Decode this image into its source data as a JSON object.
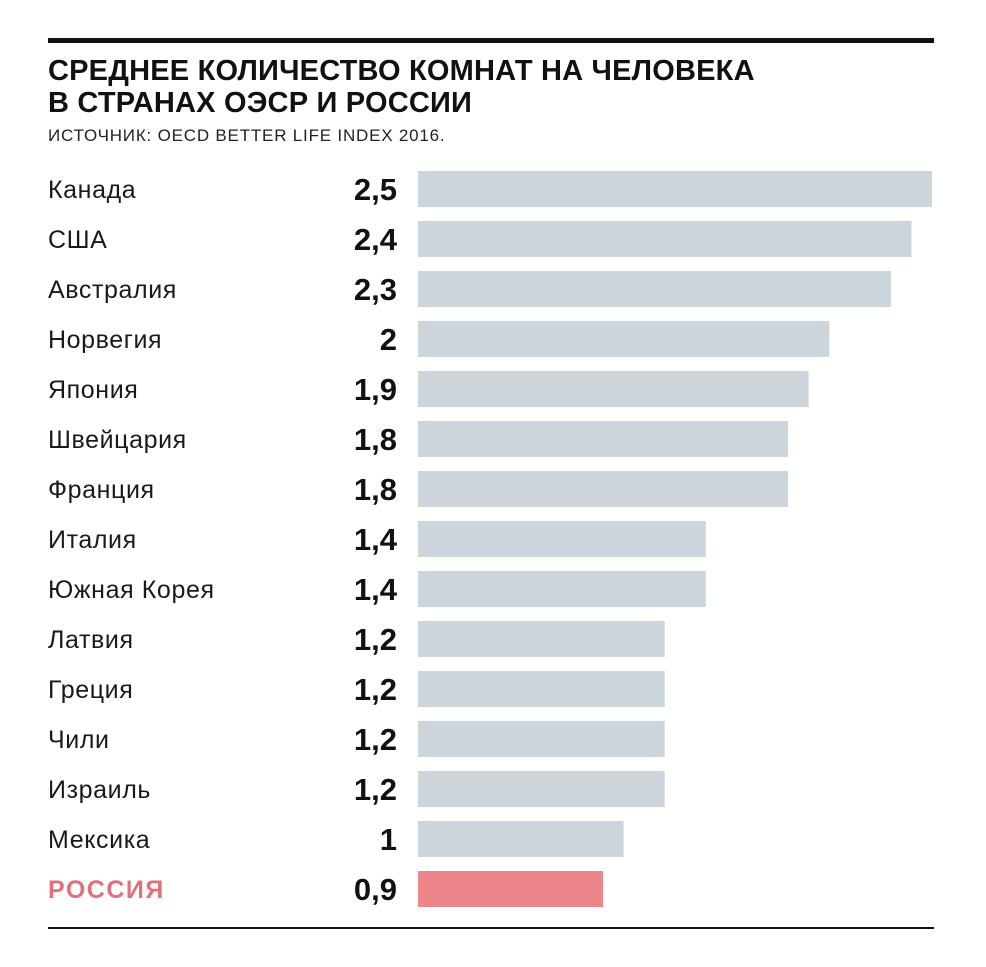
{
  "header": {
    "title_line1": "СРЕДНЕЕ КОЛИЧЕСТВО КОМНАТ НА ЧЕЛОВЕКА",
    "title_line2": "В СТРАНАХ ОЭСР И РОССИИ",
    "source": "ИСТОЧНИК: OECD BETTER LIFE INDEX 2016."
  },
  "colors": {
    "bar_default": "#ccd5dc",
    "bar_highlight": "#ec868b",
    "label_highlight": "#e0707a",
    "text": "#1a1a1a"
  },
  "chart_data": {
    "type": "bar",
    "orientation": "horizontal",
    "title": "СРЕДНЕЕ КОЛИЧЕСТВО КОМНАТ НА ЧЕЛОВЕКА В СТРАНАХ ОЭСР И РОССИИ",
    "categories": [
      "Канада",
      "США",
      "Австралия",
      "Норвегия",
      "Япония",
      "Швейцария",
      "Франция",
      "Италия",
      "Южная Корея",
      "Латвия",
      "Греция",
      "Чили",
      "Израиль",
      "Мексика",
      "РОССИЯ"
    ],
    "values": [
      2.5,
      2.4,
      2.3,
      2,
      1.9,
      1.8,
      1.8,
      1.4,
      1.4,
      1.2,
      1.2,
      1.2,
      1.2,
      1,
      0.9
    ],
    "value_labels": [
      "2,5",
      "2,4",
      "2,3",
      "2",
      "1,9",
      "1,8",
      "1,8",
      "1,4",
      "1,4",
      "1,2",
      "1,2",
      "1,2",
      "1,2",
      "1",
      "0,9"
    ],
    "highlight": "РОССИЯ",
    "xlim": [
      0,
      2.5
    ],
    "grid": false,
    "legend": "none"
  }
}
